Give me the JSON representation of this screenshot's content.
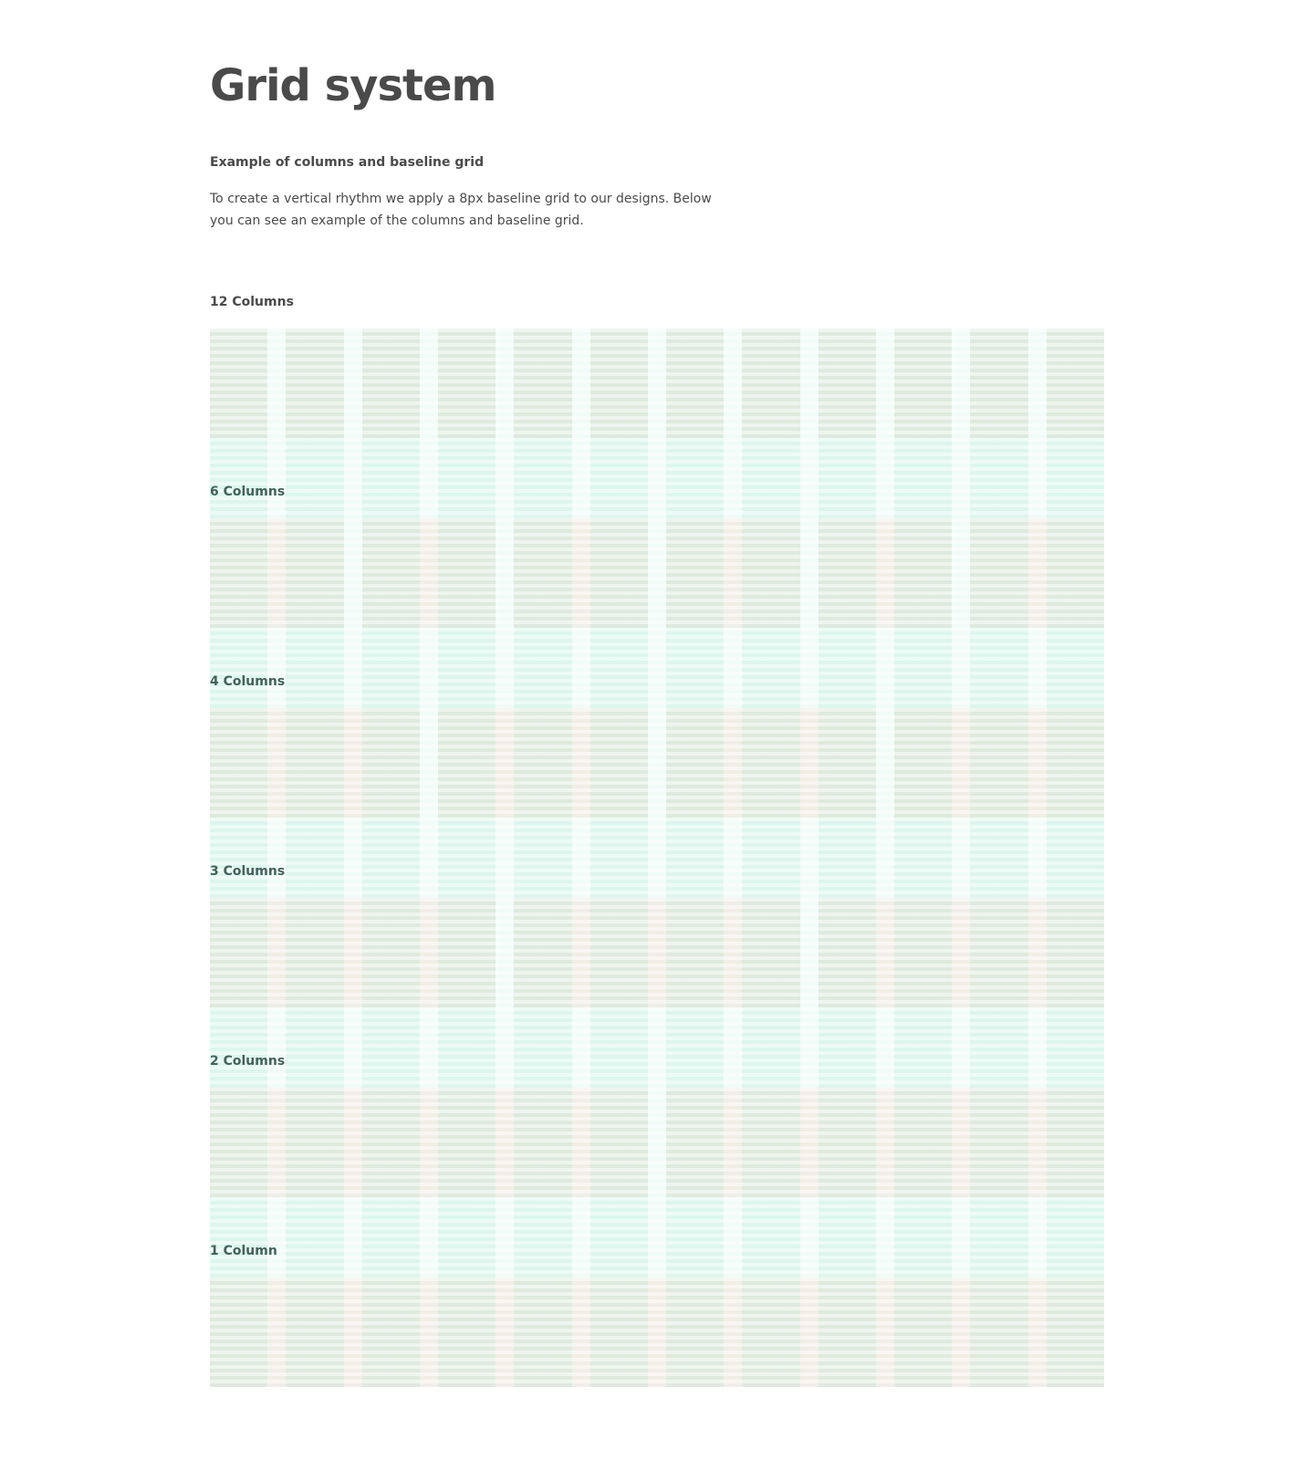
{
  "header": {
    "title": "Grid system",
    "subtitle": "Example of columns and baseline grid",
    "description": "To create a vertical rhythm we apply a 8px baseline grid to our designs. Below you can see an example of the columns and baseline grid."
  },
  "grid": {
    "rows": [
      {
        "label": "12 Columns"
      },
      {
        "label": "6 Columns"
      },
      {
        "label": "4 Columns"
      },
      {
        "label": "3 Columns"
      },
      {
        "label": "2 Columns"
      },
      {
        "label": "1 Column"
      }
    ]
  }
}
